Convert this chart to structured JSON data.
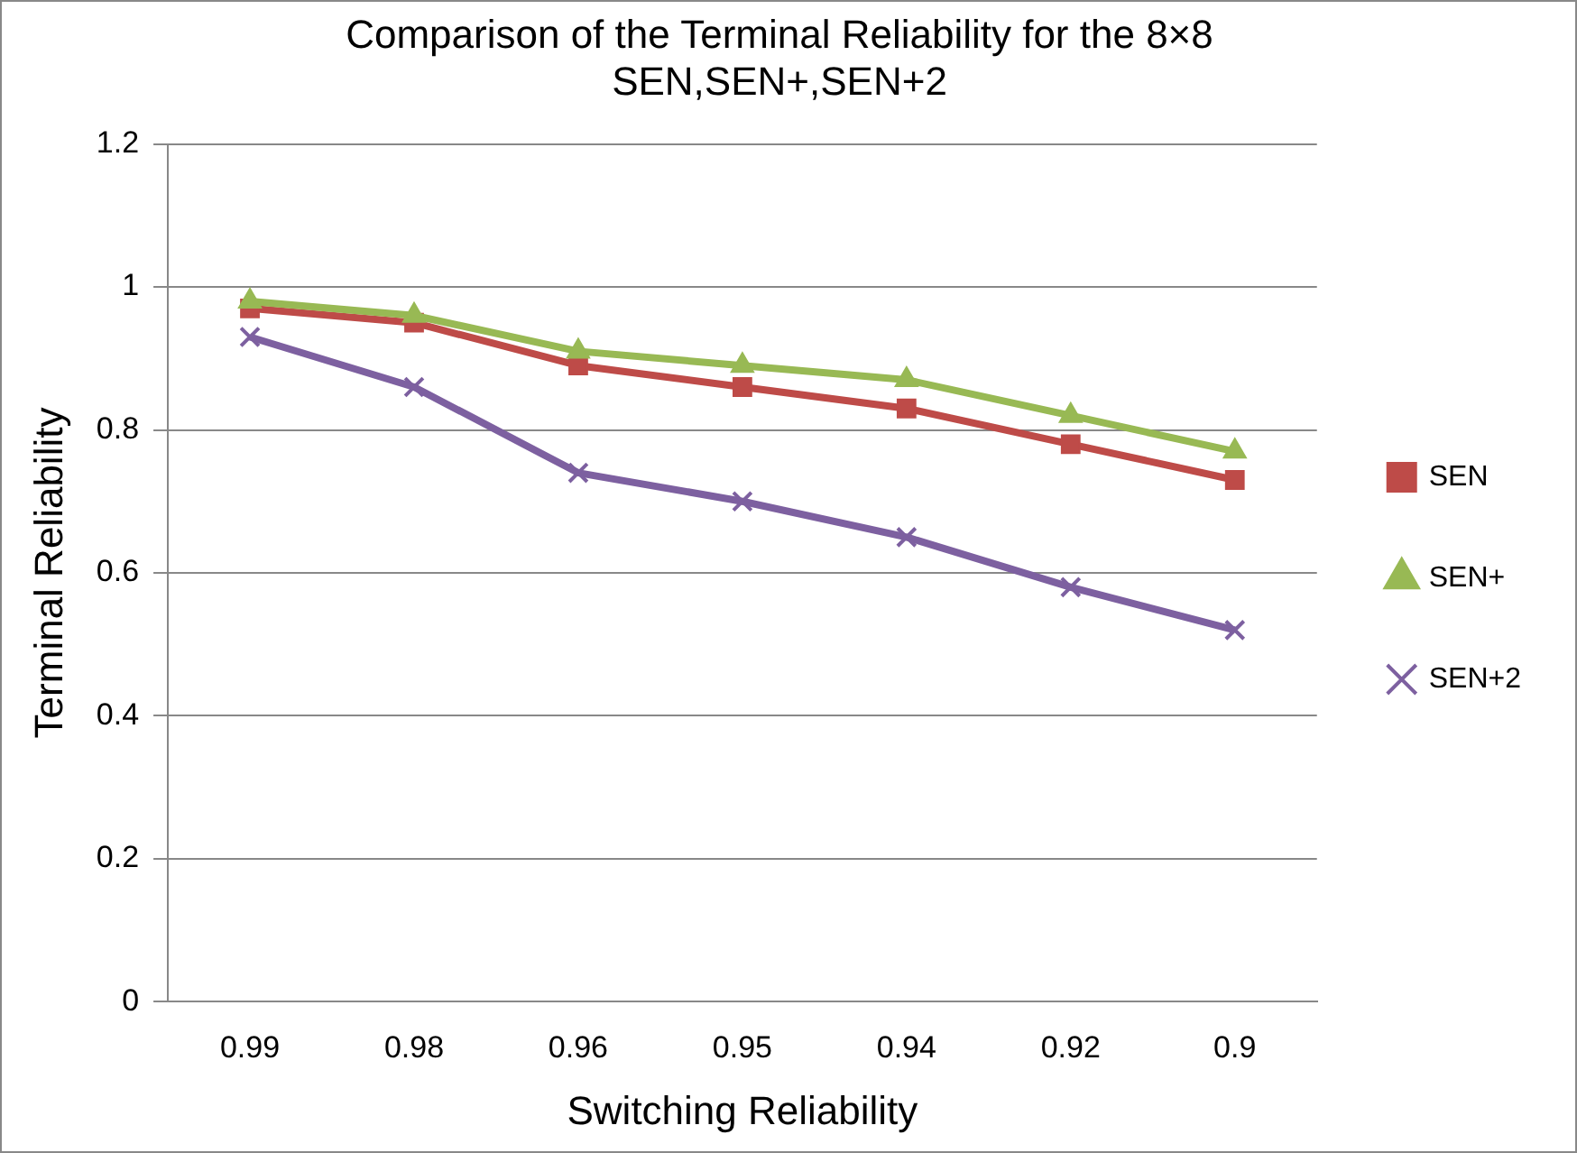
{
  "chart_data": {
    "type": "line",
    "title": [
      "Comparison of the Terminal Reliability for the 8×8",
      "SEN,SEN+,SEN+2"
    ],
    "xlabel": "Switching Reliability",
    "ylabel": "Terminal Reliability",
    "categories": [
      "0.99",
      "0.98",
      "0.96",
      "0.95",
      "0.94",
      "0.92",
      "0.9"
    ],
    "series": [
      {
        "name": "SEN",
        "color": "#be4b48",
        "marker": "square",
        "values": [
          0.97,
          0.95,
          0.89,
          0.86,
          0.83,
          0.78,
          0.73
        ]
      },
      {
        "name": "SEN+",
        "color": "#98b954",
        "marker": "triangle",
        "values": [
          0.98,
          0.96,
          0.91,
          0.89,
          0.87,
          0.82,
          0.77
        ]
      },
      {
        "name": "SEN+2",
        "color": "#7d60a0",
        "marker": "cross",
        "values": [
          0.93,
          0.86,
          0.74,
          0.7,
          0.65,
          0.58,
          0.52
        ]
      }
    ],
    "ylim": [
      0,
      1.2
    ],
    "yticks": [
      0,
      0.2,
      0.4,
      0.6,
      0.8,
      1,
      1.2
    ],
    "grid": "y",
    "legend": "right",
    "line_style": "solid"
  }
}
